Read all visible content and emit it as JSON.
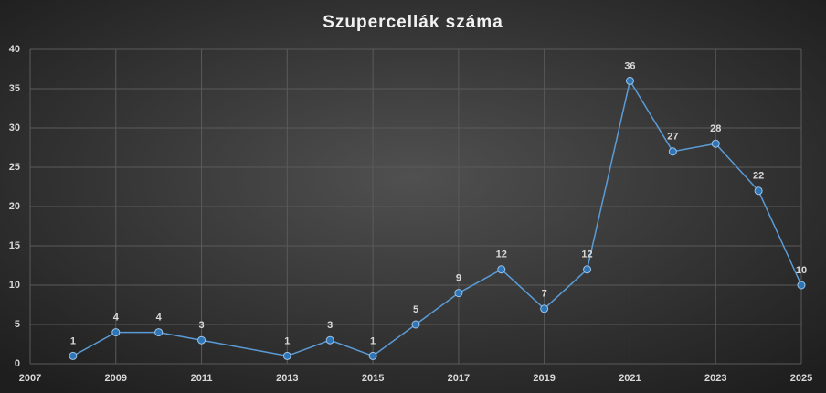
{
  "chart_data": {
    "type": "line",
    "title": "Szupercellák száma",
    "x": [
      2008,
      2009,
      2010,
      2011,
      2013,
      2014,
      2015,
      2016,
      2017,
      2018,
      2019,
      2020,
      2021,
      2022,
      2023,
      2024,
      2025
    ],
    "series": [
      {
        "color": "#5b9bd5",
        "values": [
          1,
          4,
          4,
          3,
          1,
          3,
          1,
          5,
          9,
          12,
          7,
          12,
          36,
          27,
          28,
          22,
          10
        ]
      }
    ],
    "xlim": [
      2007,
      2025
    ],
    "xticks": [
      2007,
      2009,
      2011,
      2013,
      2015,
      2017,
      2019,
      2021,
      2023,
      2025
    ],
    "ylim": [
      0,
      40
    ],
    "yticks": [
      0,
      5,
      10,
      15,
      20,
      25,
      30,
      35,
      40
    ],
    "grid": true
  }
}
